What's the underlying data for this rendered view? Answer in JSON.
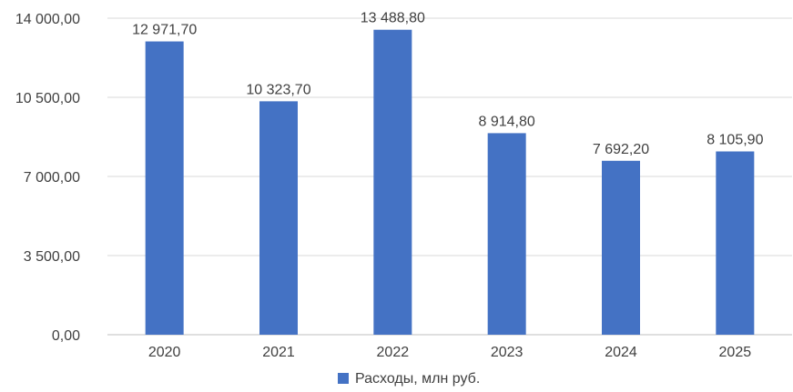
{
  "chart_data": {
    "type": "bar",
    "categories": [
      "2020",
      "2021",
      "2022",
      "2023",
      "2024",
      "2025"
    ],
    "series": [
      {
        "name": "Расходы, млн руб.",
        "values": [
          12971.7,
          10323.7,
          13488.8,
          8914.8,
          7692.2,
          8105.9
        ],
        "labels": [
          "12 971,70",
          "10 323,70",
          "13 488,80",
          "8 914,80",
          "7 692,20",
          "8 105,90"
        ]
      }
    ],
    "yticks": [
      "0,00",
      "3 500,00",
      "7 000,00",
      "10 500,00",
      "14 000,00"
    ],
    "ylim": [
      0,
      14000
    ],
    "grid": true,
    "legend_position": "bottom",
    "bar_color": "#4472C4"
  }
}
